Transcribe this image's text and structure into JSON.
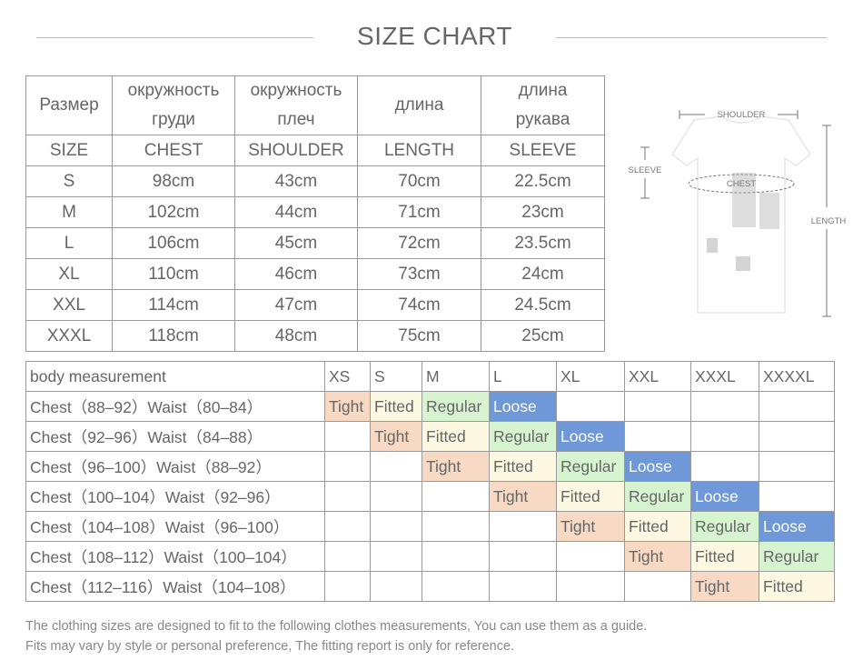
{
  "title": "SIZE CHART",
  "size_table": {
    "header_ru": [
      "Размер",
      "окружность груди",
      "окружность плеч",
      "длина",
      "длина рукава"
    ],
    "header_en": [
      "SIZE",
      "CHEST",
      "SHOULDER",
      "LENGTH",
      "SLEEVE"
    ],
    "rows": [
      [
        "S",
        "98cm",
        "43cm",
        "70cm",
        "22.5cm"
      ],
      [
        "M",
        "102cm",
        "44cm",
        "71cm",
        "23cm"
      ],
      [
        "L",
        "106cm",
        "45cm",
        "72cm",
        "23.5cm"
      ],
      [
        "XL",
        "110cm",
        "46cm",
        "73cm",
        "24cm"
      ],
      [
        "XXL",
        "114cm",
        "47cm",
        "74cm",
        "24.5cm"
      ],
      [
        "XXXL",
        "118cm",
        "48cm",
        "75cm",
        "25cm"
      ]
    ]
  },
  "diagram": {
    "shoulder": "SHOULDER",
    "sleeve": "SLEEVE",
    "chest": "CHEST",
    "length": "LENGTH"
  },
  "fit_table": {
    "header": [
      "body measurement",
      "XS",
      "S",
      "M",
      "L",
      "XL",
      "XXL",
      "XXXL",
      "XXXXL"
    ],
    "rows": [
      {
        "label": "Chest（88–92）Waist（80–84）",
        "cells": [
          "Tight",
          "Fitted",
          "Regular",
          "Loose",
          null,
          null,
          null,
          null
        ]
      },
      {
        "label": "Chest（92–96）Waist（84–88）",
        "cells": [
          null,
          "Tight",
          "Fitted",
          "Regular",
          "Loose",
          null,
          null,
          null
        ]
      },
      {
        "label": "Chest（96–100）Waist（88–92）",
        "cells": [
          null,
          null,
          "Tight",
          "Fitted",
          "Regular",
          "Loose",
          null,
          null
        ]
      },
      {
        "label": "Chest（100–104）Waist（92–96）",
        "cells": [
          null,
          null,
          null,
          "Tight",
          "Fitted",
          "Regular",
          "Loose",
          null
        ]
      },
      {
        "label": "Chest（104–108）Waist（96–100）",
        "cells": [
          null,
          null,
          null,
          null,
          "Tight",
          "Fitted",
          "Regular",
          "Loose"
        ]
      },
      {
        "label": "Chest（108–112）Waist（100–104）",
        "cells": [
          null,
          null,
          null,
          null,
          null,
          "Tight",
          "Fitted",
          "Regular"
        ]
      },
      {
        "label": "Chest（112–116）Waist（104–108）",
        "cells": [
          null,
          null,
          null,
          null,
          null,
          null,
          "Tight",
          "Fitted"
        ]
      }
    ]
  },
  "notes": [
    "The clothing sizes are designed to fit to the following clothes measurements, You can use them as a guide.",
    "Fits may vary by style or personal preference, The fitting report is only for reference."
  ]
}
